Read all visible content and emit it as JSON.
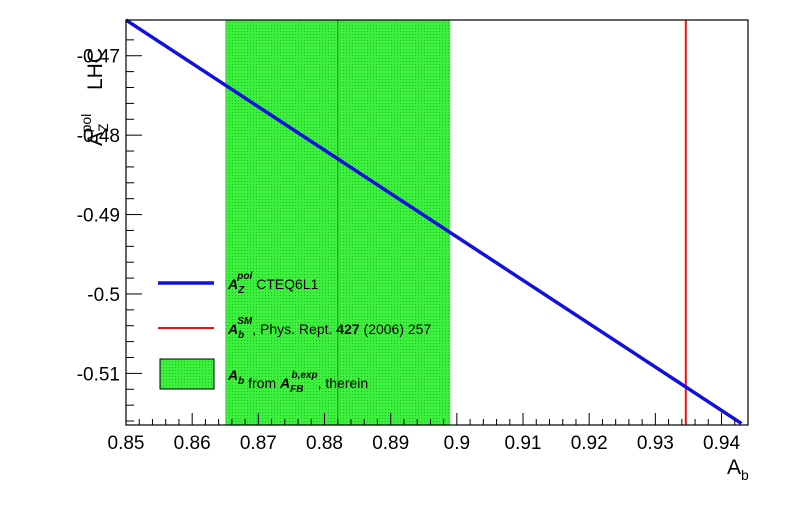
{
  "chart_data": {
    "type": "line",
    "title": "",
    "xlabel": {
      "main": "A",
      "sub": "b"
    },
    "ylabel": {
      "main": "A",
      "sub": "Z",
      "sup": "pol",
      "suffix": "LHC"
    },
    "xlim": [
      0.85,
      0.944
    ],
    "ylim": [
      -0.5165,
      -0.4655
    ],
    "xticks": [
      {
        "value": 0.85,
        "label": "0.85"
      },
      {
        "value": 0.86,
        "label": "0.86"
      },
      {
        "value": 0.87,
        "label": "0.87"
      },
      {
        "value": 0.88,
        "label": "0.88"
      },
      {
        "value": 0.89,
        "label": "0.89"
      },
      {
        "value": 0.9,
        "label": "0.9"
      },
      {
        "value": 0.91,
        "label": "0.91"
      },
      {
        "value": 0.92,
        "label": "0.92"
      },
      {
        "value": 0.93,
        "label": "0.93"
      },
      {
        "value": 0.94,
        "label": "0.94"
      }
    ],
    "yticks": [
      {
        "value": -0.47,
        "label": "-0.47"
      },
      {
        "value": -0.48,
        "label": "-0.48"
      },
      {
        "value": -0.49,
        "label": "-0.49"
      },
      {
        "value": -0.5,
        "label": "-0.5"
      },
      {
        "value": -0.51,
        "label": "-0.51"
      }
    ],
    "series": [
      {
        "color": "#1010e0",
        "x": [
          0.85,
          0.943
        ],
        "y": [
          -0.4655,
          -0.5163
        ]
      }
    ],
    "vline": {
      "x": 0.9346,
      "color": "#ee1111"
    },
    "band": {
      "x0": 0.865,
      "x1": 0.899,
      "center": 0.882,
      "color": "#2fe82f"
    },
    "legend": {
      "placement": "bottom-left",
      "entries": [
        {
          "kind": "line",
          "color": "#1010e0",
          "main": "A",
          "sub": "Z",
          "sup": "pol",
          "text": "CTEQ6L1"
        },
        {
          "kind": "line",
          "color": "#ee1111",
          "main": "A",
          "sub": "b",
          "sup": "SM",
          "text_pre": ", Phys. Rept. ",
          "text_bold": "427",
          "text_post": " (2006) 257"
        },
        {
          "kind": "box",
          "color": "#2fe82f",
          "main": "A",
          "sub": "b",
          "text_pre": " from ",
          "main2": "A",
          "sub2": "FB",
          "sup2": "b,exp",
          "text_post": ", therein"
        }
      ]
    }
  }
}
